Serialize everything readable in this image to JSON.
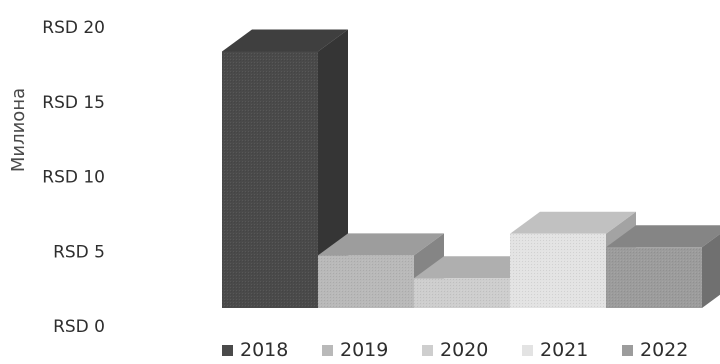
{
  "chart_data": {
    "type": "bar",
    "ylabel": "Милиона",
    "categories": [
      "2018",
      "2019",
      "2020",
      "2021",
      "2022"
    ],
    "values": [
      19,
      3.9,
      2.2,
      5.5,
      4.5
    ],
    "ylim": [
      0,
      20
    ],
    "yticks": [
      {
        "value": 0,
        "label": "RSD 0"
      },
      {
        "value": 5,
        "label": "RSD 5"
      },
      {
        "value": 10,
        "label": "RSD 10"
      },
      {
        "value": 15,
        "label": "RSD 15"
      },
      {
        "value": 20,
        "label": "RSD 20"
      }
    ],
    "colors": [
      "#4a4a4a",
      "#b9b9b9",
      "#cecece",
      "#e3e3e3",
      "#9c9c9c"
    ],
    "grid": false,
    "legend_position": "bottom"
  }
}
